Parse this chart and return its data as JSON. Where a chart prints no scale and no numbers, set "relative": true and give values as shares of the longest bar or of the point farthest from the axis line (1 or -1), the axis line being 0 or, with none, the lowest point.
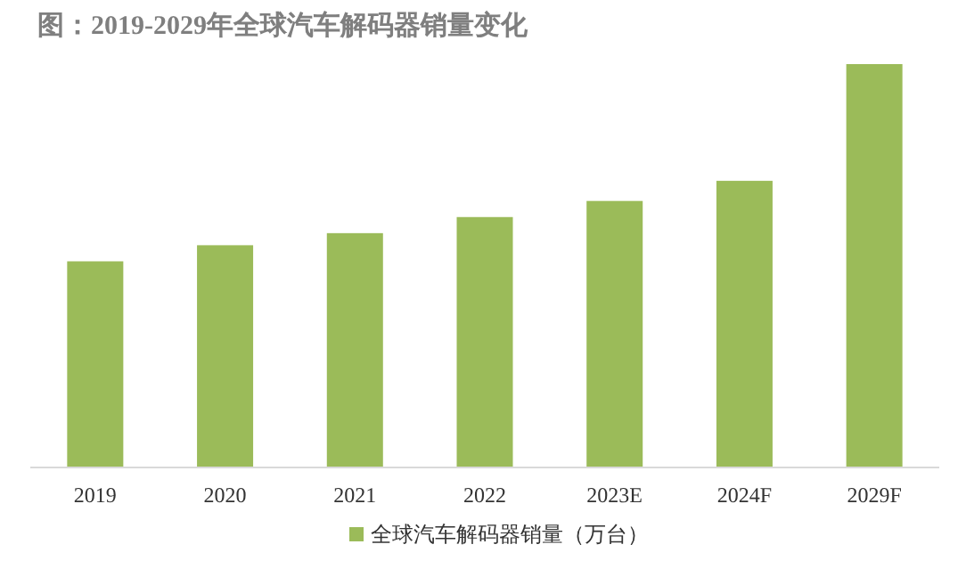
{
  "chart_data": {
    "type": "bar",
    "title": "图：2019-2029年全球汽车解码器销量变化",
    "relative": true,
    "categories": [
      "2019",
      "2020",
      "2021",
      "2022",
      "2023E",
      "2024F",
      "2029F"
    ],
    "series": [
      {
        "name": "全球汽车解码器销量（万台）",
        "color": "#9bbb59",
        "values": [
          0.51,
          0.55,
          0.58,
          0.62,
          0.66,
          0.71,
          1
        ]
      }
    ],
    "legend": "bottom"
  }
}
